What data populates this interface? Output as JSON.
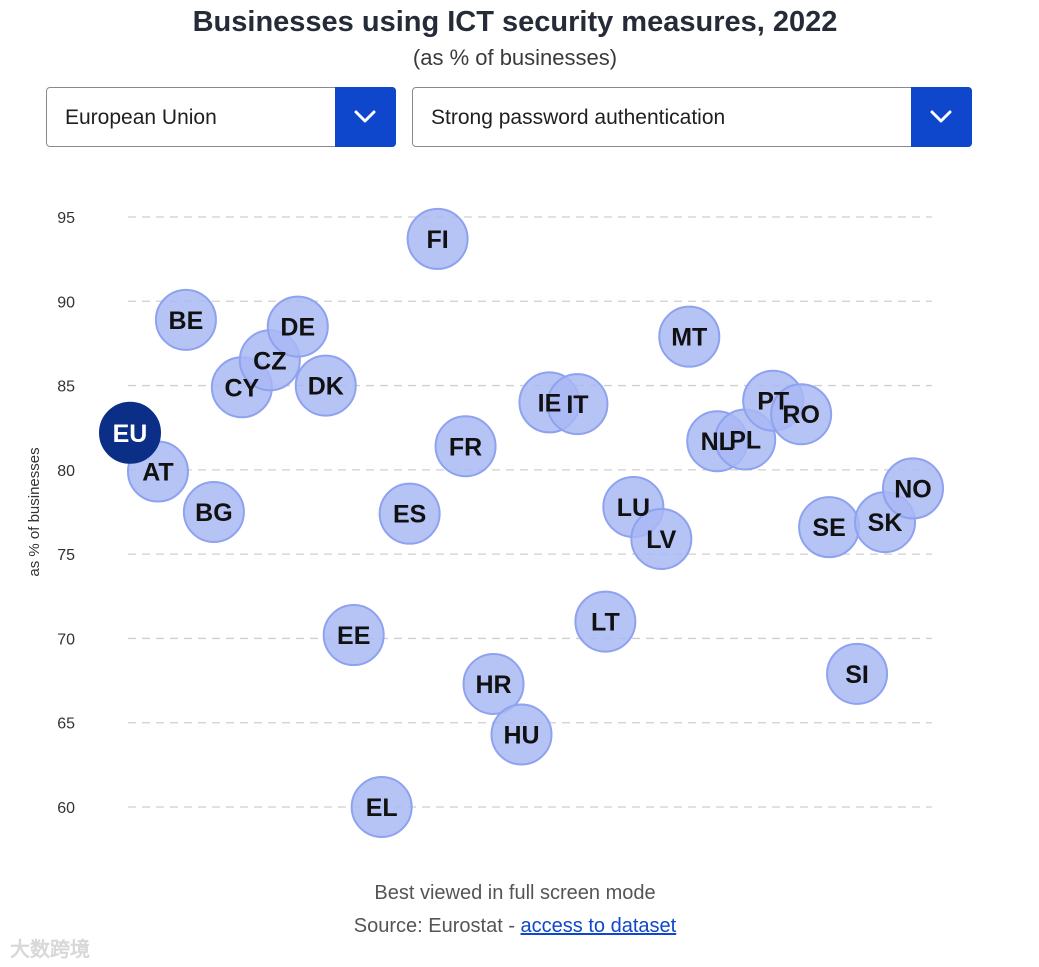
{
  "header": {
    "title": "Businesses using ICT security measures, 2022",
    "subtitle": "(as % of businesses)"
  },
  "controls": {
    "country_select": {
      "selected": "European Union"
    },
    "measure_select": {
      "selected": "Strong password authentication"
    }
  },
  "footer": {
    "note": "Best viewed in full screen mode",
    "source_prefix": "Source: Eurostat - ",
    "source_link": "access to dataset"
  },
  "watermark": "大数跨境",
  "colors": {
    "bubble_fill": "#a9b8f3",
    "bubble_stroke": "#8ea2ef",
    "highlight_fill": "#0b2e86",
    "accent": "#0e47cb"
  },
  "chart_data": {
    "type": "scatter",
    "title": "Businesses using ICT security measures, 2022",
    "ylabel": "as % of businesses",
    "xlabel": "",
    "ylim": [
      58,
      97
    ],
    "yticks": [
      95,
      90,
      85,
      80,
      75,
      70,
      65,
      60
    ],
    "grid": true,
    "highlight": "EU",
    "points": [
      {
        "label": "EU",
        "x": 0,
        "y": 82.2
      },
      {
        "label": "AT",
        "x": 1,
        "y": 79.9
      },
      {
        "label": "BE",
        "x": 2,
        "y": 88.9
      },
      {
        "label": "BG",
        "x": 3,
        "y": 77.5
      },
      {
        "label": "CY",
        "x": 4,
        "y": 84.9
      },
      {
        "label": "CZ",
        "x": 5,
        "y": 86.5
      },
      {
        "label": "DE",
        "x": 6,
        "y": 88.5
      },
      {
        "label": "DK",
        "x": 7,
        "y": 85.0
      },
      {
        "label": "EE",
        "x": 8,
        "y": 70.2
      },
      {
        "label": "EL",
        "x": 9,
        "y": 60.0
      },
      {
        "label": "ES",
        "x": 10,
        "y": 77.4
      },
      {
        "label": "FI",
        "x": 11,
        "y": 93.7
      },
      {
        "label": "FR",
        "x": 12,
        "y": 81.4
      },
      {
        "label": "HR",
        "x": 13,
        "y": 67.3
      },
      {
        "label": "HU",
        "x": 14,
        "y": 64.3
      },
      {
        "label": "IE",
        "x": 15,
        "y": 84.0
      },
      {
        "label": "IT",
        "x": 16,
        "y": 83.9
      },
      {
        "label": "LT",
        "x": 17,
        "y": 71.0
      },
      {
        "label": "LU",
        "x": 18,
        "y": 77.8
      },
      {
        "label": "LV",
        "x": 19,
        "y": 75.9
      },
      {
        "label": "MT",
        "x": 20,
        "y": 87.9
      },
      {
        "label": "NL",
        "x": 21,
        "y": 81.7
      },
      {
        "label": "PL",
        "x": 22,
        "y": 81.8
      },
      {
        "label": "PT",
        "x": 23,
        "y": 84.1
      },
      {
        "label": "RO",
        "x": 24,
        "y": 83.3
      },
      {
        "label": "SE",
        "x": 25,
        "y": 76.6
      },
      {
        "label": "SI",
        "x": 26,
        "y": 67.9
      },
      {
        "label": "SK",
        "x": 27,
        "y": 76.9
      },
      {
        "label": "NO",
        "x": 28,
        "y": 78.9
      }
    ]
  }
}
